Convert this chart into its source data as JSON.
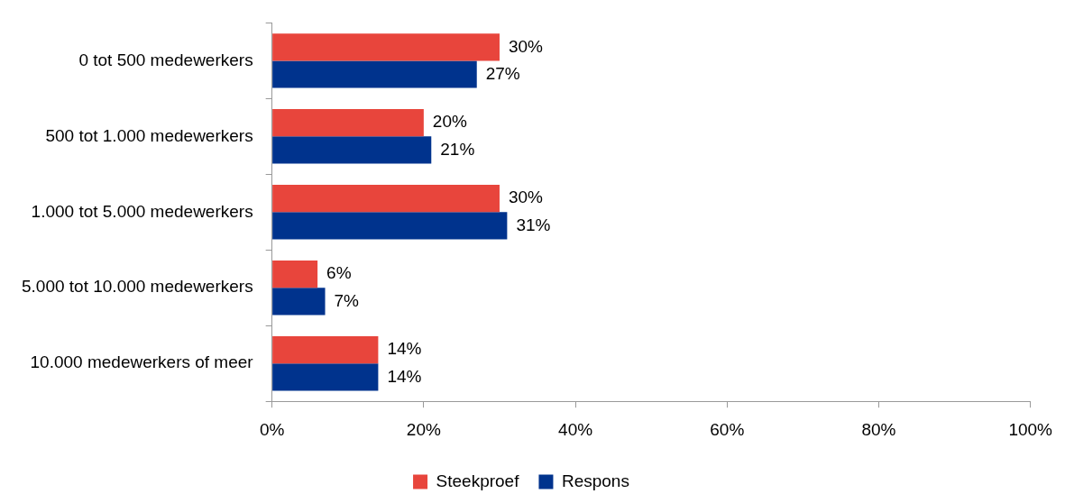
{
  "chart_data": {
    "type": "bar",
    "orientation": "horizontal",
    "categories": [
      "0 tot 500 medewerkers",
      "500 tot 1.000 medewerkers",
      "1.000 tot 5.000 medewerkers",
      "5.000 tot 10.000 medewerkers",
      "10.000 medewerkers of meer"
    ],
    "series": [
      {
        "name": "Steekproef",
        "color": "#e8453c",
        "values": [
          30,
          20,
          30,
          6,
          14
        ],
        "value_labels": [
          "30%",
          "20%",
          "30%",
          "6%",
          "14%"
        ]
      },
      {
        "name": "Respons",
        "color": "#00338d",
        "values": [
          27,
          21,
          31,
          7,
          14
        ],
        "value_labels": [
          "27%",
          "21%",
          "31%",
          "7%",
          "14%"
        ]
      }
    ],
    "xlim": [
      0,
      100
    ],
    "xticks": [
      {
        "value": 0,
        "label": "0%"
      },
      {
        "value": 20,
        "label": "20%"
      },
      {
        "value": 40,
        "label": "40%"
      },
      {
        "value": 60,
        "label": "60%"
      },
      {
        "value": 80,
        "label": "80%"
      },
      {
        "value": 100,
        "label": "100%"
      }
    ],
    "grid": false,
    "legend": "bottom"
  }
}
